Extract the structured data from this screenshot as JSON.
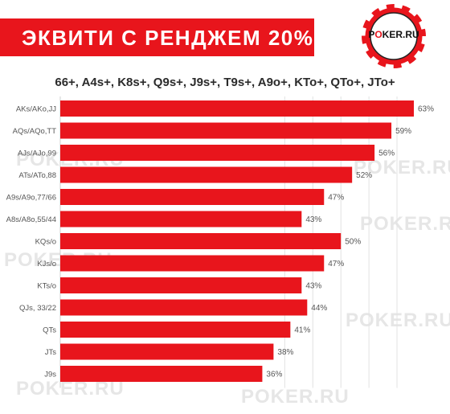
{
  "header": {
    "title": "ЭКВИТИ С РЕНДЖЕМ 20%",
    "subtitle": "66+, A4s+, K8s+, Q9s+, J9s+, T9s+, A9o+, KTo+, QTo+, JTo+"
  },
  "logo": {
    "text": "POKER.RU",
    "accent_letter": "O"
  },
  "watermark": {
    "text": "POKER.RU"
  },
  "colors": {
    "accent": "#e8151c",
    "bar": "#e8151c",
    "label": "#555555",
    "grid": "#e2e2e2"
  },
  "chart_data": {
    "type": "bar",
    "orientation": "horizontal",
    "categories": [
      "AKs/AKo,JJ",
      "AQs/AQo,TT",
      "AJs/AJo,99",
      "ATs/ATo,88",
      "A9s/A9o,77/66",
      "A8s/A8o,55/44",
      "KQs/o",
      "KJs/o",
      "KTs/o",
      "QJs, 33/22",
      "QTs",
      "JTs",
      "J9s"
    ],
    "values": [
      63,
      59,
      56,
      52,
      47,
      43,
      50,
      47,
      43,
      44,
      41,
      38,
      36
    ],
    "value_labels": [
      "63%",
      "59%",
      "56%",
      "52%",
      "47%",
      "43%",
      "50%",
      "47%",
      "43%",
      "44%",
      "41%",
      "38%",
      "36%"
    ],
    "xlim": [
      0,
      63
    ],
    "grid": true
  }
}
